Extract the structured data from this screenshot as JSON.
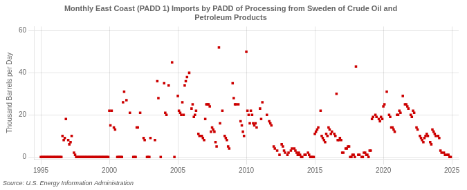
{
  "chart_data": {
    "type": "scatter",
    "title": "Monthly East Coast (PADD 1) Imports by PADD of Processing from Sweden of Crude Oil and\nPetroleum Products",
    "ylabel": "Thousand Barrels per Day",
    "source": "Source: U.S. Energy Information Administration",
    "color": "#cc0000",
    "marker": "square",
    "grid": true,
    "xlim": [
      1994.5,
      2025.5
    ],
    "ylim": [
      -1,
      62
    ],
    "xticks": [
      1995,
      2000,
      2005,
      2010,
      2015,
      2020,
      2025
    ],
    "yticks": [
      0,
      20,
      40,
      60
    ],
    "x": [
      1995.0,
      1995.08,
      1995.17,
      1995.25,
      1995.33,
      1995.42,
      1995.5,
      1995.58,
      1995.67,
      1995.75,
      1995.83,
      1995.92,
      1996.0,
      1996.08,
      1996.17,
      1996.25,
      1996.33,
      1996.42,
      1996.5,
      1996.58,
      1996.67,
      1996.75,
      1996.83,
      1997.0,
      1997.08,
      1997.17,
      1997.25,
      1997.42,
      1997.5,
      1997.58,
      1997.67,
      1997.75,
      1997.83,
      1997.92,
      1998.0,
      1998.08,
      1998.17,
      1998.25,
      1998.33,
      1998.42,
      1998.5,
      1998.58,
      1998.67,
      1998.75,
      1998.83,
      1998.92,
      1999.0,
      1999.08,
      1999.17,
      1999.25,
      1999.33,
      1999.42,
      1999.5,
      1999.58,
      1999.67,
      1999.75,
      1999.83,
      1999.92,
      2000.0,
      2000.08,
      2000.17,
      2000.33,
      2000.42,
      2000.58,
      2000.67,
      2000.75,
      2000.83,
      2000.92,
      2001.0,
      2001.08,
      2001.25,
      2001.5,
      2001.75,
      2001.83,
      2001.92,
      2002.0,
      2002.08,
      2002.25,
      2002.5,
      2002.58,
      2002.75,
      2002.83,
      2002.92,
      2003.0,
      2003.33,
      2003.5,
      2003.58,
      2003.75,
      2004.0,
      2004.08,
      2004.17,
      2004.33,
      2004.58,
      2004.75,
      2005.0,
      2005.08,
      2005.17,
      2005.25,
      2005.33,
      2005.42,
      2005.5,
      2005.58,
      2005.67,
      2005.83,
      2006.0,
      2006.08,
      2006.17,
      2006.25,
      2006.33,
      2006.5,
      2006.58,
      2006.75,
      2006.83,
      2006.92,
      2007.0,
      2007.08,
      2007.17,
      2007.25,
      2007.33,
      2007.42,
      2007.5,
      2007.58,
      2007.67,
      2007.75,
      2007.83,
      2008.0,
      2008.08,
      2008.25,
      2008.42,
      2008.5,
      2008.58,
      2008.67,
      2008.75,
      2009.0,
      2009.08,
      2009.17,
      2009.25,
      2009.42,
      2009.58,
      2009.67,
      2009.75,
      2009.83,
      2010.0,
      2010.08,
      2010.17,
      2010.25,
      2010.33,
      2010.42,
      2010.5,
      2010.58,
      2010.67,
      2010.75,
      2011.0,
      2011.08,
      2011.17,
      2011.5,
      2011.67,
      2011.75,
      2011.83,
      2012.0,
      2012.08,
      2012.25,
      2012.42,
      2012.58,
      2012.67,
      2012.75,
      2012.83,
      2013.0,
      2013.08,
      2013.25,
      2013.33,
      2013.5,
      2013.58,
      2013.67,
      2013.75,
      2013.83,
      2013.92,
      2014.0,
      2014.08,
      2014.25,
      2014.33,
      2014.5,
      2014.58,
      2014.67,
      2014.75,
      2014.83,
      2014.92,
      2015.0,
      2015.08,
      2015.17,
      2015.25,
      2015.42,
      2015.5,
      2015.58,
      2015.67,
      2015.75,
      2015.83,
      2015.92,
      2016.0,
      2016.08,
      2016.17,
      2016.25,
      2016.42,
      2016.5,
      2016.58,
      2016.67,
      2016.75,
      2016.83,
      2016.92,
      2017.0,
      2017.08,
      2017.25,
      2017.33,
      2017.42,
      2017.5,
      2017.58,
      2017.67,
      2017.75,
      2017.83,
      2017.92,
      2018.0,
      2018.17,
      2018.25,
      2018.42,
      2018.5,
      2018.58,
      2018.67,
      2018.75,
      2018.83,
      2018.92,
      2019.0,
      2019.08,
      2019.17,
      2019.25,
      2019.42,
      2019.5,
      2019.67,
      2019.75,
      2019.83,
      2019.92,
      2020.0,
      2020.08,
      2020.25,
      2020.42,
      2020.5,
      2020.58,
      2020.67,
      2020.75,
      2020.83,
      2021.0,
      2021.08,
      2021.17,
      2021.25,
      2021.42,
      2021.58,
      2021.67,
      2021.75,
      2021.83,
      2022.0,
      2022.08,
      2022.17,
      2022.25,
      2022.42,
      2022.5,
      2022.67,
      2022.75,
      2022.83,
      2022.92,
      2023.0,
      2023.08,
      2023.17,
      2023.25,
      2023.42,
      2023.5,
      2023.58,
      2023.67,
      2023.75,
      2023.83,
      2024.0,
      2024.08,
      2024.17,
      2024.25,
      2024.42,
      2024.5,
      2024.67,
      2024.75,
      2024.83,
      2024.92
    ],
    "values": [
      0,
      0,
      0,
      0,
      0,
      0,
      0,
      0,
      0,
      0,
      0,
      0,
      0,
      0,
      0,
      0,
      0,
      0,
      0,
      10,
      8,
      9,
      18,
      8,
      6,
      7,
      10,
      2,
      1,
      0,
      0,
      0,
      0,
      0,
      0,
      0,
      0,
      0,
      0,
      0,
      0,
      0,
      0,
      0,
      0,
      0,
      0,
      0,
      0,
      0,
      0,
      0,
      0,
      0,
      0,
      0,
      0,
      0,
      22,
      15,
      22,
      14,
      13,
      0,
      0,
      0,
      0,
      0,
      26,
      31,
      27,
      21,
      0,
      0,
      0,
      14,
      14,
      21,
      9,
      8,
      0,
      0,
      0,
      9,
      8,
      36,
      28,
      0,
      35,
      21,
      20,
      34,
      45,
      0,
      29,
      22,
      21,
      20,
      26,
      20,
      34,
      36,
      38,
      40,
      23,
      25,
      19,
      20,
      22,
      11,
      10,
      10,
      9,
      8,
      18,
      25,
      25,
      25,
      24,
      12,
      14,
      13,
      12,
      7,
      5,
      52,
      16,
      22,
      10,
      9,
      8,
      5,
      4,
      35,
      28,
      25,
      25,
      25,
      17,
      15,
      12,
      10,
      50,
      22,
      20,
      16,
      22,
      20,
      16,
      15,
      16,
      14,
      23,
      18,
      26,
      20,
      17,
      16,
      15,
      5,
      4,
      3,
      1,
      6,
      5,
      3,
      2,
      1,
      2,
      3,
      4,
      4,
      3,
      2,
      1,
      2,
      1,
      0,
      0,
      1,
      1,
      2,
      1,
      0,
      0,
      0,
      0,
      11,
      12,
      13,
      14,
      22,
      10,
      9,
      8,
      7,
      11,
      10,
      14,
      13,
      11,
      12,
      11,
      10,
      30,
      8,
      8,
      9,
      8,
      2,
      2,
      4,
      4,
      5,
      5,
      0,
      0,
      1,
      1,
      0,
      43,
      1,
      1,
      0,
      0,
      2,
      2,
      1,
      1,
      0,
      3,
      3,
      18,
      19,
      20,
      19,
      18,
      17,
      19,
      18,
      24,
      25,
      31,
      20,
      19,
      14,
      14,
      13,
      12,
      20,
      20,
      22,
      21,
      29,
      25,
      25,
      24,
      23,
      20,
      19,
      22,
      21,
      14,
      13,
      10,
      9,
      8,
      7,
      9,
      10,
      11,
      10,
      7,
      6,
      13,
      12,
      11,
      10,
      10,
      9,
      3,
      2,
      2,
      1,
      1,
      1,
      0,
      0
    ]
  }
}
